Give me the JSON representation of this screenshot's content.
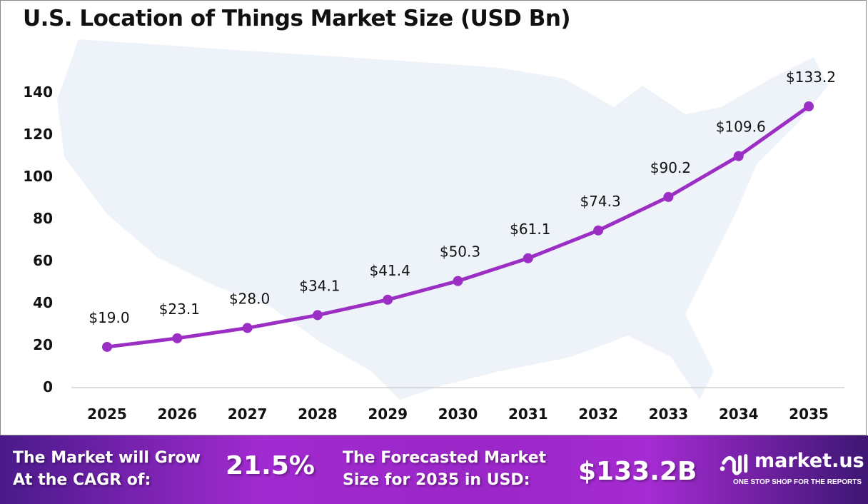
{
  "chart_data": {
    "type": "line",
    "title": "U.S. Location of Things Market Size (USD Bn)",
    "categories": [
      "2025",
      "2026",
      "2027",
      "2028",
      "2029",
      "2030",
      "2031",
      "2032",
      "2033",
      "2034",
      "2035"
    ],
    "values": [
      19.0,
      23.1,
      28.0,
      34.1,
      41.4,
      50.3,
      61.1,
      74.3,
      90.2,
      109.6,
      133.2
    ],
    "data_labels": [
      "$19.0",
      "$23.1",
      "$28.0",
      "$34.1",
      "$41.4",
      "$50.3",
      "$61.1",
      "$74.3",
      "$90.2",
      "$109.6",
      "$133.2"
    ],
    "yticks": [
      0,
      20,
      40,
      60,
      80,
      100,
      120,
      140
    ],
    "ylim": [
      0,
      140
    ],
    "grid": false,
    "line_color": "#9b2fc4",
    "xlabel": "",
    "ylabel": ""
  },
  "footer": {
    "cagr_label_1": "The Market will Grow",
    "cagr_label_2": "At the CAGR of:",
    "cagr_value": "21.5%",
    "forecast_label_1": "The Forecasted Market",
    "forecast_label_2": "Size for 2035 in USD:",
    "forecast_value": "$133.2B",
    "logo_name": "market.us",
    "logo_tagline": "ONE STOP SHOP FOR THE REPORTS"
  }
}
